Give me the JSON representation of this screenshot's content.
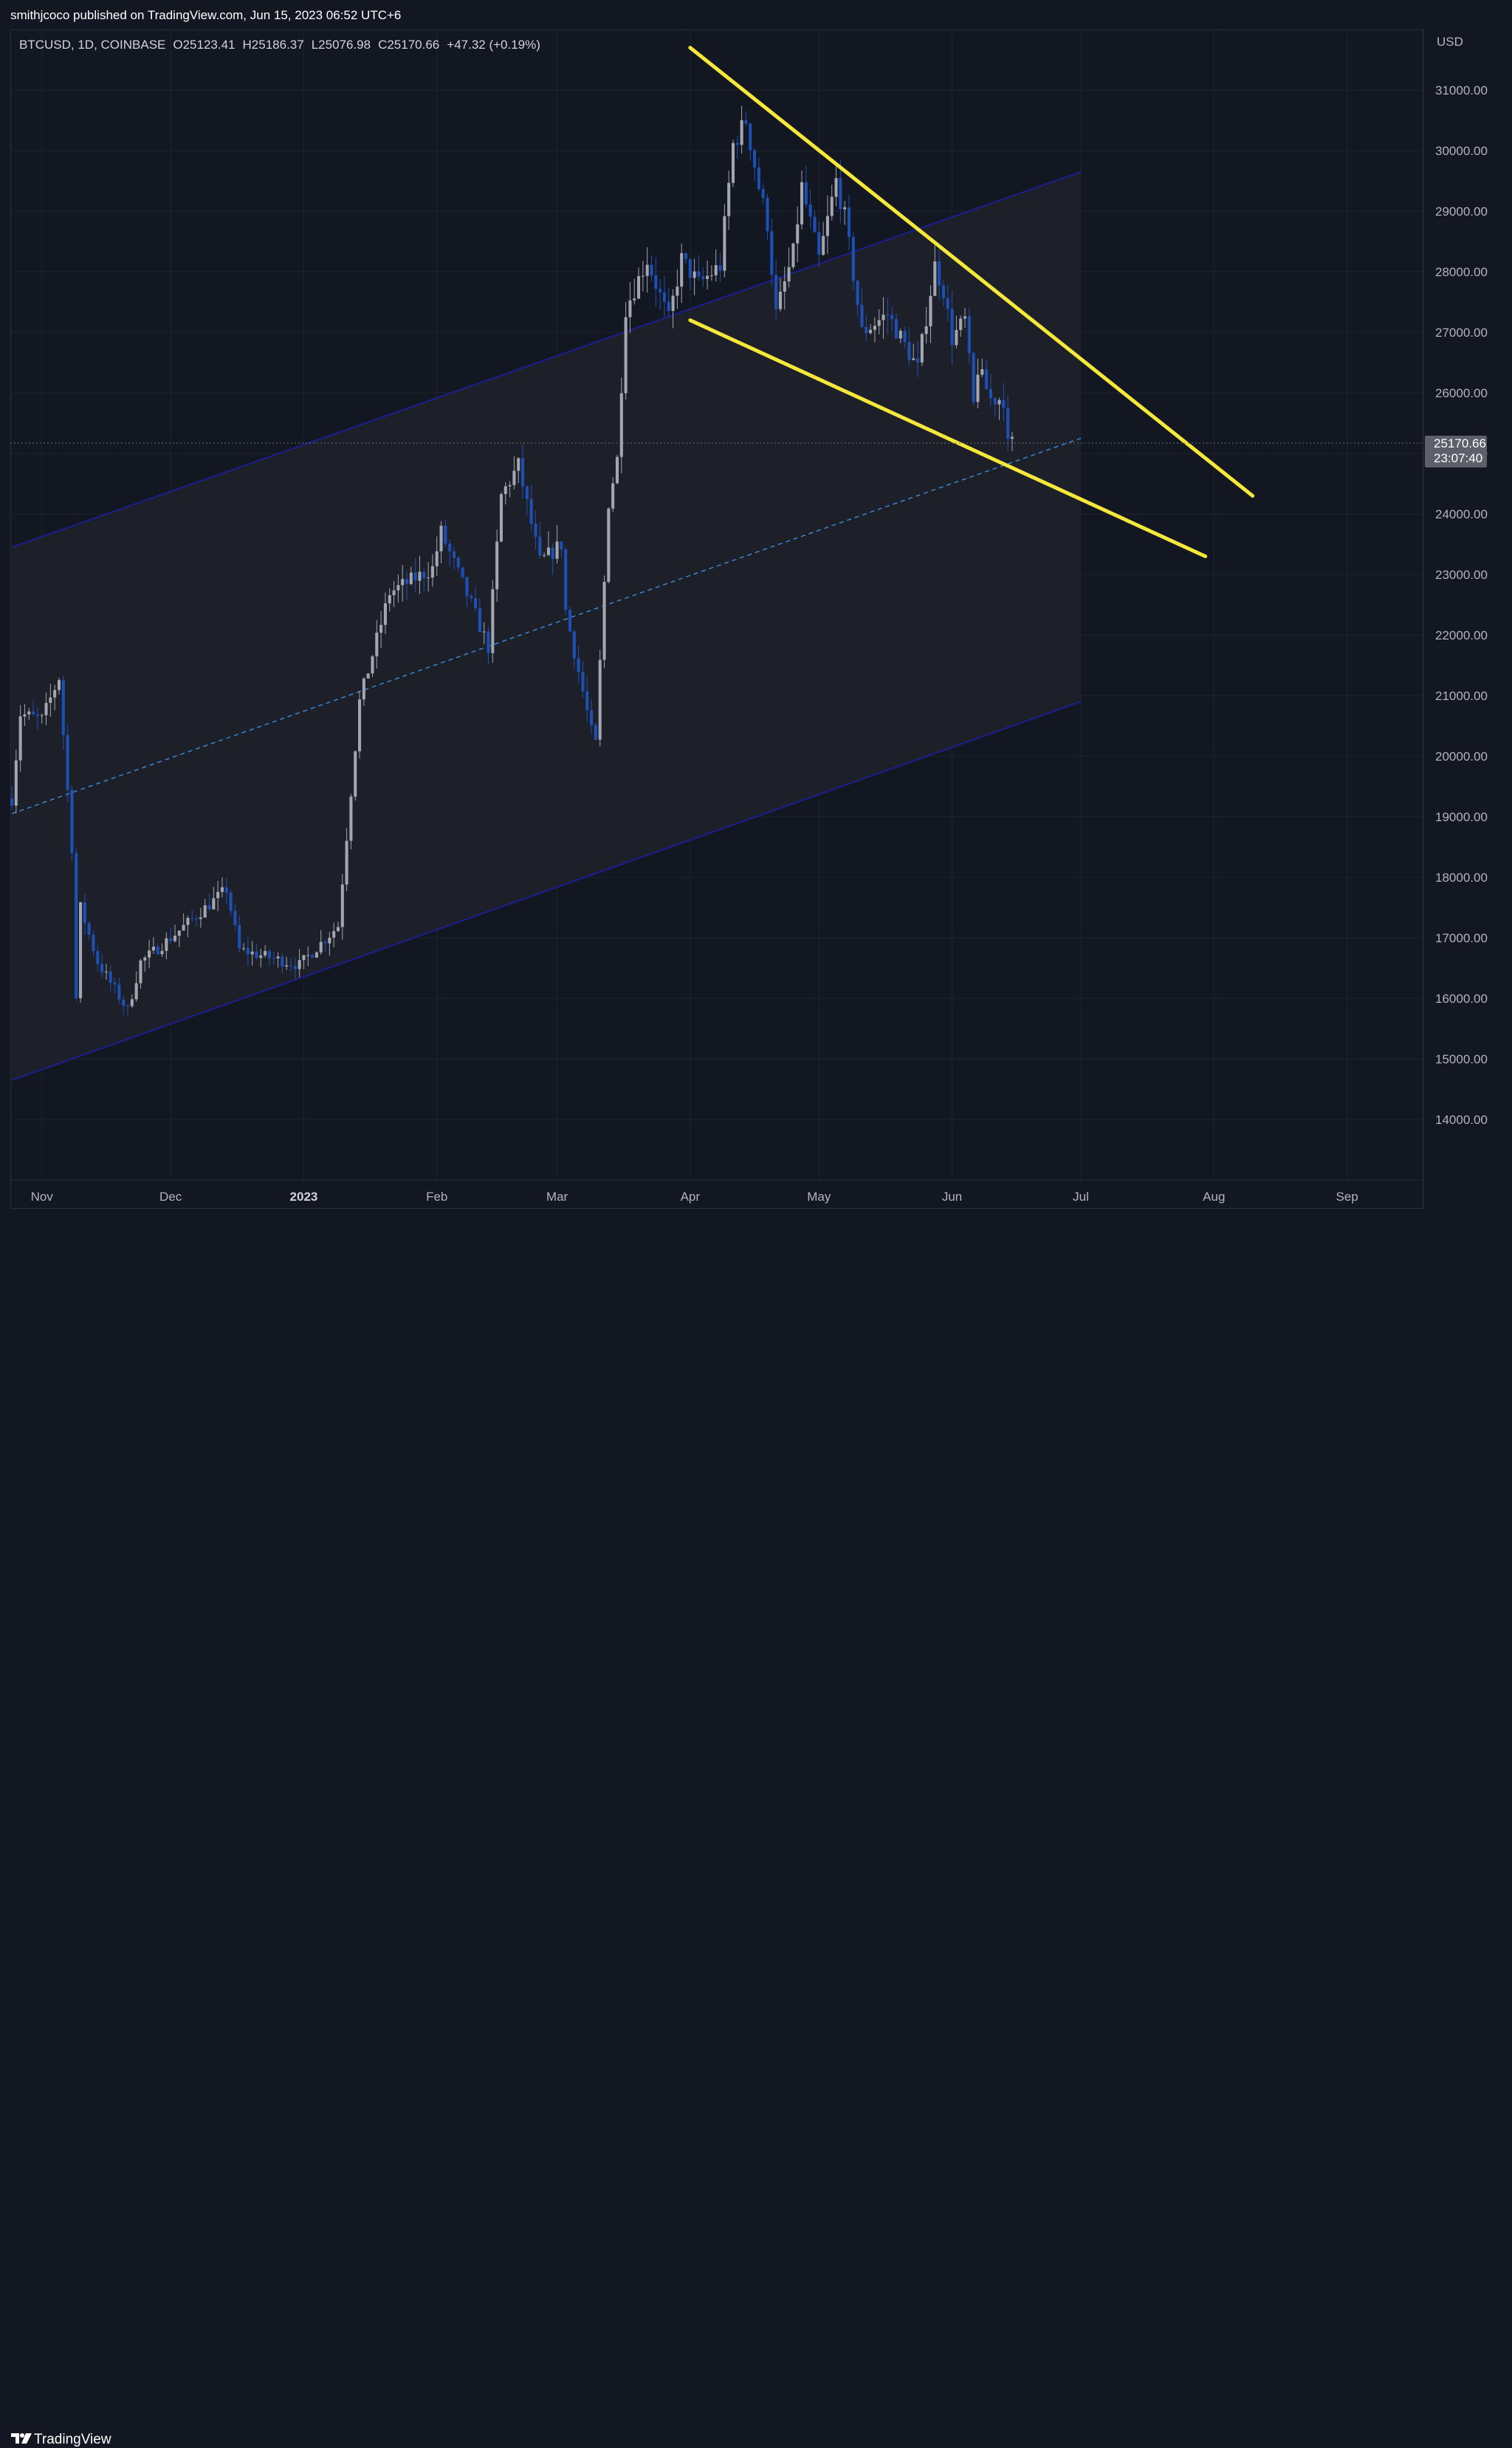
{
  "header": {
    "publish_line": "smithjcoco published on TradingView.com, Jun 15, 2023 06:52 UTC+6"
  },
  "footer": {
    "brand": "TradingView"
  },
  "legend": {
    "symbol": "BTCUSD, 1D, COINBASE",
    "open": "O25123.41",
    "high": "H25186.37",
    "low": "L25076.98",
    "close": "C25170.66",
    "change": "+47.32 (+0.19%)"
  },
  "price_axis": {
    "currency": "USD",
    "last_price": "25170.66",
    "countdown": "23:07:40"
  },
  "colors": {
    "background": "#131722",
    "grid": "#1f2330",
    "candle_up": "#a3a6af",
    "candle_down": "#1e50b4",
    "channel_line": "#1b1f8f",
    "channel_fill": "#1e2029",
    "channel_median": "#3b8de0",
    "wedge": "#f5e83a",
    "price_label_bg": "#5d606b"
  },
  "chart_data": {
    "type": "candlestick",
    "symbol": "BTCUSD",
    "interval": "1D",
    "exchange": "COINBASE",
    "y_unit": "USD",
    "ylim": [
      13000,
      32000
    ],
    "y_ticks": [
      14000,
      15000,
      16000,
      17000,
      18000,
      19000,
      20000,
      21000,
      22000,
      23000,
      24000,
      25000,
      26000,
      27000,
      28000,
      29000,
      30000,
      31000
    ],
    "y_tick_labels": [
      "14000.00",
      "15000.00",
      "16000.00",
      "17000.00",
      "18000.00",
      "19000.00",
      "20000.00",
      "21000.00",
      "22000.00",
      "23000.00",
      "24000.00",
      "25000.00",
      "26000.00",
      "27000.00",
      "28000.00",
      "29000.00",
      "30000.00",
      "31000.00"
    ],
    "x_range": [
      "2022-10-25",
      "2023-09-15"
    ],
    "x_ticks": [
      {
        "date": "2022-11-01",
        "label": "Nov",
        "bold": false
      },
      {
        "date": "2022-12-01",
        "label": "Dec",
        "bold": false
      },
      {
        "date": "2023-01-01",
        "label": "2023",
        "bold": true
      },
      {
        "date": "2023-02-01",
        "label": "Feb",
        "bold": false
      },
      {
        "date": "2023-03-01",
        "label": "Mar",
        "bold": false
      },
      {
        "date": "2023-04-01",
        "label": "Apr",
        "bold": false
      },
      {
        "date": "2023-05-01",
        "label": "May",
        "bold": false
      },
      {
        "date": "2023-06-01",
        "label": "Jun",
        "bold": false
      },
      {
        "date": "2023-07-01",
        "label": "Jul",
        "bold": false
      },
      {
        "date": "2023-08-01",
        "label": "Aug",
        "bold": false
      },
      {
        "date": "2023-09-01",
        "label": "Sep",
        "bold": false
      }
    ],
    "grid": true,
    "last_price": 25170.66,
    "anchors": [
      {
        "date": "2022-10-25",
        "price": 19300
      },
      {
        "date": "2022-10-27",
        "price": 20700
      },
      {
        "date": "2022-11-01",
        "price": 20600
      },
      {
        "date": "2022-11-05",
        "price": 21300
      },
      {
        "date": "2022-11-08",
        "price": 18500
      },
      {
        "date": "2022-11-09",
        "price": 16000
      },
      {
        "date": "2022-11-10",
        "price": 17500
      },
      {
        "date": "2022-11-14",
        "price": 16600
      },
      {
        "date": "2022-11-21",
        "price": 15800
      },
      {
        "date": "2022-11-24",
        "price": 16600
      },
      {
        "date": "2022-12-01",
        "price": 17000
      },
      {
        "date": "2022-12-14",
        "price": 17800
      },
      {
        "date": "2022-12-17",
        "price": 16800
      },
      {
        "date": "2022-12-31",
        "price": 16550
      },
      {
        "date": "2023-01-09",
        "price": 17200
      },
      {
        "date": "2023-01-14",
        "price": 20900
      },
      {
        "date": "2023-01-21",
        "price": 22700
      },
      {
        "date": "2023-01-31",
        "price": 23100
      },
      {
        "date": "2023-02-02",
        "price": 23700
      },
      {
        "date": "2023-02-09",
        "price": 22500
      },
      {
        "date": "2023-02-13",
        "price": 21800
      },
      {
        "date": "2023-02-16",
        "price": 24300
      },
      {
        "date": "2023-02-20",
        "price": 24800
      },
      {
        "date": "2023-02-25",
        "price": 23200
      },
      {
        "date": "2023-03-02",
        "price": 23500
      },
      {
        "date": "2023-03-03",
        "price": 22400
      },
      {
        "date": "2023-03-09",
        "price": 20400
      },
      {
        "date": "2023-03-10",
        "price": 20200
      },
      {
        "date": "2023-03-13",
        "price": 24200
      },
      {
        "date": "2023-03-15",
        "price": 24900
      },
      {
        "date": "2023-03-17",
        "price": 27400
      },
      {
        "date": "2023-03-22",
        "price": 28200
      },
      {
        "date": "2023-03-27",
        "price": 27200
      },
      {
        "date": "2023-03-30",
        "price": 28200
      },
      {
        "date": "2023-04-03",
        "price": 27800
      },
      {
        "date": "2023-04-08",
        "price": 28100
      },
      {
        "date": "2023-04-11",
        "price": 30100
      },
      {
        "date": "2023-04-14",
        "price": 30500
      },
      {
        "date": "2023-04-17",
        "price": 29400
      },
      {
        "date": "2023-04-19",
        "price": 28800
      },
      {
        "date": "2023-04-21",
        "price": 27300
      },
      {
        "date": "2023-04-25",
        "price": 28300
      },
      {
        "date": "2023-04-27",
        "price": 29400
      },
      {
        "date": "2023-05-01",
        "price": 28200
      },
      {
        "date": "2023-05-05",
        "price": 29500
      },
      {
        "date": "2023-05-07",
        "price": 28900
      },
      {
        "date": "2023-05-11",
        "price": 27000
      },
      {
        "date": "2023-05-17",
        "price": 27300
      },
      {
        "date": "2023-05-24",
        "price": 26400
      },
      {
        "date": "2023-05-28",
        "price": 28100
      },
      {
        "date": "2023-05-30",
        "price": 27700
      },
      {
        "date": "2023-06-01",
        "price": 26900
      },
      {
        "date": "2023-06-04",
        "price": 27200
      },
      {
        "date": "2023-06-06",
        "price": 25800
      },
      {
        "date": "2023-06-07",
        "price": 26400
      },
      {
        "date": "2023-06-10",
        "price": 25900
      },
      {
        "date": "2023-06-13",
        "price": 25900
      },
      {
        "date": "2023-06-14",
        "price": 25123.41
      },
      {
        "date": "2023-06-15",
        "price": 25170.66
      }
    ],
    "regression_channel": {
      "start": "2022-10-25",
      "end": "2023-07-01",
      "upper": [
        23450,
        29650
      ],
      "median": [
        19050,
        25250
      ],
      "lower": [
        14650,
        20900
      ]
    },
    "wedge_lines": [
      {
        "from": {
          "date": "2023-04-01",
          "price": 31700
        },
        "to": {
          "date": "2023-08-10",
          "price": 24300
        }
      },
      {
        "from": {
          "date": "2023-04-01",
          "price": 27200
        },
        "to": {
          "date": "2023-07-30",
          "price": 23300
        }
      }
    ]
  }
}
